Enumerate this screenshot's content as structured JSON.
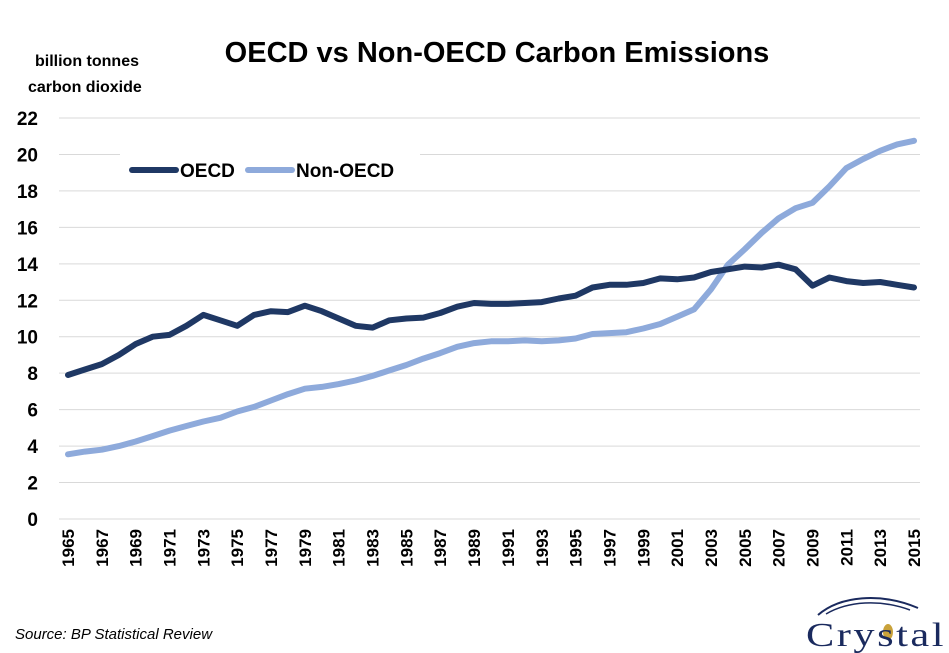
{
  "chart_data": {
    "type": "line",
    "title": "OECD vs Non-OECD Carbon Emissions",
    "ylabel": [
      "billion tonnes",
      "carbon dioxide"
    ],
    "xlabel": "",
    "ylim": [
      0,
      22
    ],
    "yticks": [
      "0",
      "2",
      "4",
      "6",
      "8",
      "10",
      "12",
      "14",
      "16",
      "18",
      "20",
      "22"
    ],
    "x": [
      1965,
      1966,
      1967,
      1968,
      1969,
      1970,
      1971,
      1972,
      1973,
      1974,
      1975,
      1976,
      1977,
      1978,
      1979,
      1980,
      1981,
      1982,
      1983,
      1984,
      1985,
      1986,
      1987,
      1988,
      1989,
      1990,
      1991,
      1992,
      1993,
      1994,
      1995,
      1996,
      1997,
      1998,
      1999,
      2000,
      2001,
      2002,
      2003,
      2004,
      2005,
      2006,
      2007,
      2008,
      2009,
      2010,
      2011,
      2012,
      2013,
      2014,
      2015
    ],
    "xtick_labels": [
      "1965",
      "1967",
      "1969",
      "1971",
      "1973",
      "1975",
      "1977",
      "1979",
      "1981",
      "1983",
      "1985",
      "1987",
      "1989",
      "1991",
      "1993",
      "1995",
      "1997",
      "1999",
      "2001",
      "2003",
      "2005",
      "2007",
      "2009",
      "2011",
      "2013",
      "2015"
    ],
    "grid": true,
    "legend_position": "top-left",
    "series": [
      {
        "name": "OECD",
        "color": "#1f3864",
        "values": [
          7.9,
          8.2,
          8.5,
          9.0,
          9.6,
          10.0,
          10.1,
          10.6,
          11.2,
          10.9,
          10.6,
          11.2,
          11.4,
          11.35,
          11.7,
          11.4,
          11.0,
          10.6,
          10.5,
          10.9,
          11.0,
          11.05,
          11.3,
          11.65,
          11.85,
          11.8,
          11.8,
          11.85,
          11.9,
          12.1,
          12.25,
          12.7,
          12.85,
          12.85,
          12.95,
          13.2,
          13.15,
          13.25,
          13.55,
          13.7,
          13.85,
          13.8,
          13.95,
          13.7,
          12.8,
          13.25,
          13.05,
          12.95,
          13.0,
          12.85,
          12.7
        ]
      },
      {
        "name": "Non-OECD",
        "color": "#8eaadb",
        "values": [
          3.55,
          3.7,
          3.8,
          4.0,
          4.25,
          4.55,
          4.85,
          5.1,
          5.35,
          5.55,
          5.9,
          6.15,
          6.5,
          6.85,
          7.15,
          7.25,
          7.4,
          7.6,
          7.85,
          8.15,
          8.45,
          8.8,
          9.1,
          9.45,
          9.65,
          9.75,
          9.75,
          9.8,
          9.75,
          9.8,
          9.9,
          10.15,
          10.2,
          10.25,
          10.45,
          10.7,
          11.1,
          11.5,
          12.6,
          13.95,
          14.8,
          15.7,
          16.5,
          17.05,
          17.35,
          18.25,
          19.25,
          19.75,
          20.2,
          20.55,
          20.75
        ]
      }
    ]
  },
  "source": "Source: BP Statistical Review",
  "logo": {
    "text": "Crystal",
    "color": "#1a2a5e"
  }
}
